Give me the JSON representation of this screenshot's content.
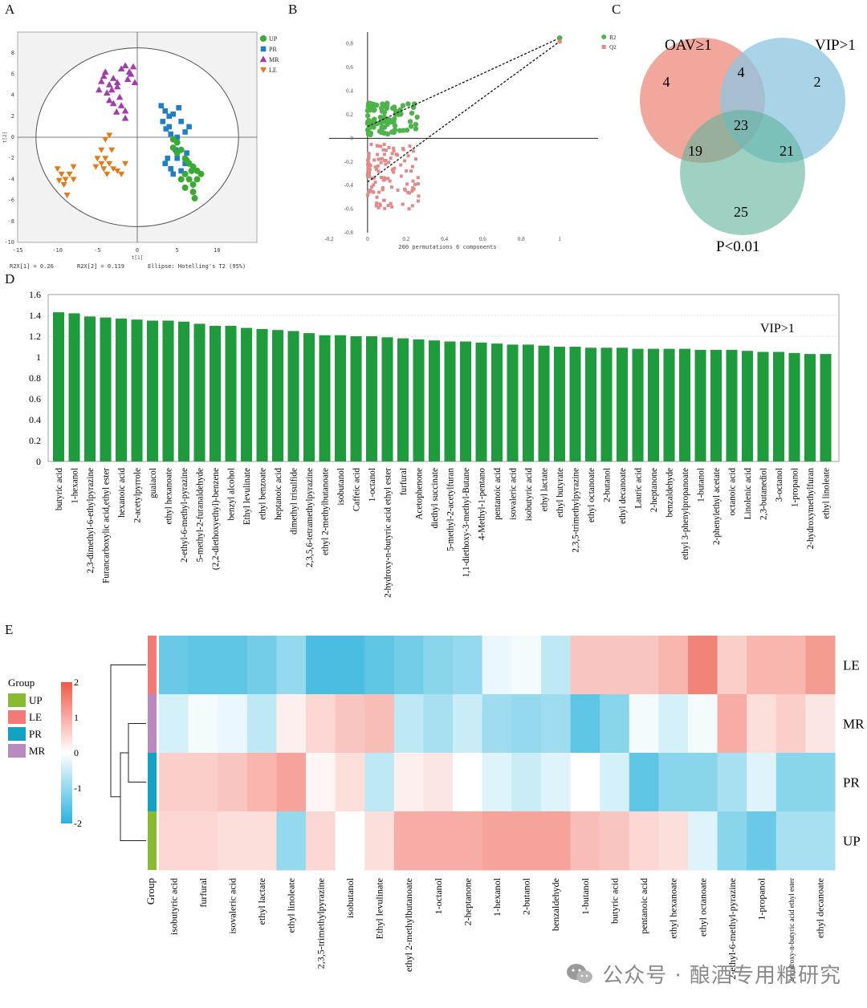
{
  "panels": {
    "a": "A",
    "b": "B",
    "c": "C",
    "d": "D",
    "e": "E"
  },
  "colors": {
    "up": "#3aaa35",
    "pr": "#1f7fc4",
    "mr": "#a03da8",
    "le": "#e07a1a",
    "bar": "#1f9a3c",
    "venn_oav": "#ee8a7c",
    "venn_vip": "#8cc5e0",
    "venn_p": "#5fb39b",
    "heat_high": "#ee5a4a",
    "heat_low": "#29b2dc",
    "g_up": "#8aba32",
    "g_le": "#f27a74",
    "g_pr": "#14a2c3",
    "g_mr": "#b88ac0"
  },
  "chart_data": [
    {
      "type": "scatter",
      "name_id": "A",
      "xlabel": "t[1]",
      "ylabel": "t[2]",
      "xlim": [
        -15,
        15
      ],
      "ylim": [
        -10,
        10
      ],
      "xticks": [
        "-15",
        "-10",
        "-5",
        "0",
        "5",
        "10"
      ],
      "yticks": [
        "8",
        "6",
        "4",
        "2",
        "0",
        "-2",
        "-4",
        "-6",
        "-8",
        "-10"
      ],
      "footer": [
        "R2X[1] = 0.26",
        "R2X[2] = 0.119",
        "Ellipse: Hotelling's T2 (95%)"
      ],
      "legend": [
        "UP",
        "PR",
        "MR",
        "LE"
      ],
      "series": [
        {
          "name": "MR",
          "points": [
            [
              -4.5,
              5.3
            ],
            [
              -4,
              6.2
            ],
            [
              -3.5,
              5.0
            ],
            [
              -3,
              5.6
            ],
            [
              -2,
              6.5
            ],
            [
              -1.5,
              6.8
            ],
            [
              -1,
              6.2
            ],
            [
              -0.5,
              6.7
            ],
            [
              -2.5,
              5.2
            ],
            [
              -3.8,
              4.2
            ],
            [
              -3.5,
              3.5
            ],
            [
              -3,
              3.2
            ],
            [
              -2,
              3.0
            ],
            [
              -1.5,
              2.5
            ],
            [
              -2.5,
              4.8
            ],
            [
              -4.8,
              4.5
            ],
            [
              -1.2,
              5.5
            ],
            [
              -0.3,
              5.2
            ],
            [
              -2.2,
              3.8
            ],
            [
              -3.2,
              4.5
            ],
            [
              -1.5,
              1.8
            ],
            [
              -2.6,
              2.4
            ],
            [
              -4.2,
              5.8
            ],
            [
              -0.8,
              6.0
            ]
          ]
        },
        {
          "name": "PR",
          "points": [
            [
              3,
              3
            ],
            [
              3.5,
              2.5
            ],
            [
              4,
              2
            ],
            [
              4.5,
              2.2
            ],
            [
              3.2,
              1.5
            ],
            [
              4,
              1
            ],
            [
              5,
              0
            ],
            [
              4.2,
              0.3
            ],
            [
              6,
              0.5
            ],
            [
              6.5,
              1
            ],
            [
              5.5,
              1.5
            ],
            [
              3.8,
              -2
            ],
            [
              4.2,
              -3
            ],
            [
              4.5,
              -3.5
            ],
            [
              3.5,
              -2.5
            ],
            [
              5,
              -2
            ],
            [
              6,
              -2.5
            ],
            [
              5.5,
              -3.2
            ],
            [
              4.8,
              -1.2
            ],
            [
              3.6,
              0.8
            ],
            [
              5.2,
              2.8
            ],
            [
              6.2,
              -1.5
            ]
          ]
        },
        {
          "name": "UP",
          "points": [
            [
              4.5,
              -1
            ],
            [
              5,
              -1.5
            ],
            [
              5.5,
              -1.2
            ],
            [
              6,
              -2
            ],
            [
              6.5,
              -2.5
            ],
            [
              7,
              -2.8
            ],
            [
              7.5,
              -3.2
            ],
            [
              6,
              -3.5
            ],
            [
              6.5,
              -4
            ],
            [
              7,
              -4.5
            ],
            [
              5.5,
              -4
            ],
            [
              6,
              -4.8
            ],
            [
              7,
              -5.2
            ],
            [
              7.5,
              -4
            ],
            [
              8,
              -3.5
            ],
            [
              5,
              -0.5
            ],
            [
              4.5,
              -0.2
            ],
            [
              6.8,
              -3.2
            ],
            [
              7.2,
              -5.8
            ],
            [
              6.2,
              -2.2
            ]
          ]
        },
        {
          "name": "LE",
          "points": [
            [
              -10,
              -3
            ],
            [
              -9.5,
              -3.5
            ],
            [
              -9,
              -4
            ],
            [
              -8.5,
              -3.5
            ],
            [
              -8,
              -4
            ],
            [
              -9.2,
              -4.5
            ],
            [
              -8.8,
              -5.5
            ],
            [
              -8,
              -2.8
            ],
            [
              -9.8,
              -4.1
            ],
            [
              -5,
              -2
            ],
            [
              -4.5,
              -2.5
            ],
            [
              -4,
              -2
            ],
            [
              -3.5,
              -2.5
            ],
            [
              -3,
              -3
            ],
            [
              -4.2,
              -3
            ],
            [
              -5.2,
              -2.8
            ],
            [
              -2.5,
              -3.2
            ],
            [
              -3.8,
              -3.5
            ],
            [
              -4.5,
              -1.2
            ],
            [
              -3.2,
              -1.2
            ],
            [
              -4,
              -0.2
            ],
            [
              -3.5,
              0.2
            ],
            [
              -1.5,
              -2.5
            ],
            [
              -2,
              -3.5
            ]
          ]
        }
      ]
    },
    {
      "type": "scatter",
      "name_id": "B",
      "xlabel": "200 permutations 6 components",
      "xlim": [
        -0.2,
        1.2
      ],
      "ylim": [
        -0.8,
        0.9
      ],
      "xticks": [
        "-0.2",
        "0",
        "0.2",
        "0.4",
        "0.6",
        "0.8",
        "1"
      ],
      "yticks": [
        "0.8",
        "0.6",
        "0.4",
        "0.2",
        "0",
        "-0.2",
        "-0.4",
        "-0.6",
        "-0.8"
      ],
      "legend": [
        "R2",
        "Q2"
      ],
      "series": [
        {
          "name": "R2",
          "points": [
            [
              1,
              0.85
            ]
          ],
          "regression": [
            [
              0,
              0.1
            ],
            [
              1,
              0.85
            ]
          ]
        },
        {
          "name": "Q2",
          "points": [
            [
              1,
              0.82
            ]
          ],
          "regression": [
            [
              0,
              -0.37
            ],
            [
              1,
              0.82
            ]
          ]
        }
      ]
    },
    {
      "type": "venn",
      "name_id": "C",
      "sets": [
        "OAV≥1",
        "VIP>1",
        "P<0.01"
      ],
      "regions": {
        "oav_only": "4",
        "vip_only": "2",
        "p_only": "25",
        "oav_vip": "4",
        "oav_p": "19",
        "vip_p": "21",
        "all": "23"
      }
    },
    {
      "type": "bar",
      "name_id": "D",
      "annotation": "VIP>1",
      "ylim": [
        0,
        1.6
      ],
      "yticks": [
        "0",
        "0.2",
        "0.4",
        "0.6",
        "0.8",
        "1",
        "1.2",
        "1.4",
        "1.6"
      ],
      "categories": [
        "butyric acid",
        "1-hexanol",
        "2,3-dimethyl-6-ethylpyrazine",
        "Furancarboxylic acid,ethyl ester",
        "hexanoic acid",
        "2-acetylpyrrole",
        "guaiacol",
        "ethyl hexanoate",
        "2-ethyl-6-methyl-pyrazine",
        "5-methyl-2-furanaldehyde",
        "(2,2-diethoxyethyl)-benzene",
        "benzyl alcohol",
        "Ethyl levulinate",
        "ethyl benzoate",
        "heptanoic acid",
        "dimethyl trisulfide",
        "2,3,5,6-tetramethylpyrazine",
        "ethyl 2-methylbutanoate",
        "isobutanol",
        "Caffeic acid",
        "1-octanol",
        "2-hydroxy-n-butyric acid ethyl ester",
        "furfural",
        "Acetophenone",
        "diethyl succinate",
        "5-methyl-2-acetylfuran",
        "1,1-diethoxy-3-methyl-Butane",
        "4-Methyl-1-pentano",
        "pentanoic acid",
        "isovaleric acid",
        "isobutyric acid",
        "ethyl lactate",
        "ethyl butyrate",
        "2,3,5-trimethylpyrazine",
        "ethyl octanoate",
        "2-butanol",
        "ethyl decanoate",
        "Lauric acid",
        "2-heptanone",
        "benzaldehyde",
        "ethyl 3-phenylpropanoate",
        "1-butanol",
        "2-phenylethyl acetate",
        "octanoic acid",
        "Linolenic acid",
        "2,3-butanediol",
        "3-octanol",
        "1-propanol",
        "2-hydroxymethylfuran",
        "ethyl linoleate"
      ],
      "values": [
        1.43,
        1.42,
        1.39,
        1.38,
        1.37,
        1.36,
        1.35,
        1.35,
        1.34,
        1.32,
        1.3,
        1.3,
        1.28,
        1.27,
        1.26,
        1.25,
        1.23,
        1.21,
        1.21,
        1.2,
        1.2,
        1.19,
        1.18,
        1.17,
        1.16,
        1.15,
        1.15,
        1.14,
        1.13,
        1.12,
        1.12,
        1.11,
        1.1,
        1.1,
        1.09,
        1.09,
        1.09,
        1.08,
        1.08,
        1.08,
        1.08,
        1.07,
        1.07,
        1.07,
        1.06,
        1.05,
        1.05,
        1.04,
        1.03,
        1.03
      ]
    },
    {
      "type": "heatmap",
      "name_id": "E",
      "rows": [
        "LE",
        "MR",
        "PR",
        "UP"
      ],
      "groups": [
        "LE",
        "MR",
        "PR",
        "UP"
      ],
      "group_axis_label": "Group",
      "legend_title": "Group",
      "legend_groups": [
        "UP",
        "LE",
        "PR",
        "MR"
      ],
      "scale_ticks": [
        "2",
        "1",
        "0",
        "-1",
        "-2"
      ],
      "scale_range": [
        -2,
        2
      ],
      "columns": [
        "isobutyric acid",
        "furfural",
        "isovaleric acid",
        "ethyl lactate",
        "ethyl linoleate",
        "2,3,5-trimethylpyrazine",
        "isobutanol",
        "Ethyl levulinate",
        "ethyl 2-methylbutanoate",
        "1-octanol",
        "2-heptanone",
        "1-hexanol",
        "2-butanol",
        "benzaldehyde",
        "1-butanol",
        "butyric acid",
        "pentanoic acid",
        "ethyl hexanoate",
        "ethyl octanoate",
        "2-ethyl-6-methyl-pyrazine",
        "1-propanol",
        "2-hydroxy-n-butyric acid ethyl ester",
        "ethyl decanoate"
      ],
      "values": [
        [
          -1.4,
          -1.5,
          -1.5,
          -1.3,
          -1.0,
          -1.7,
          -1.7,
          -1.5,
          -1.3,
          -1.1,
          -1.0,
          -0.2,
          -0.1,
          -0.6,
          0.7,
          0.7,
          0.7,
          0.9,
          1.5,
          0.6,
          0.9,
          0.9,
          1.2
        ],
        [
          -0.4,
          -0.1,
          -0.2,
          -0.6,
          0.2,
          0.5,
          0.7,
          0.8,
          -0.6,
          -0.8,
          -0.5,
          -0.9,
          -1.0,
          -0.9,
          -1.5,
          -1.1,
          -0.1,
          -0.4,
          -0.1,
          1.0,
          0.4,
          0.6,
          0.3
        ],
        [
          0.6,
          0.6,
          0.7,
          0.9,
          1.1,
          0.1,
          0.4,
          -0.6,
          0.2,
          0.3,
          0.0,
          -0.3,
          -0.5,
          -0.3,
          0.0,
          -0.4,
          -1.5,
          -1.1,
          -1.1,
          -0.8,
          -0.3,
          -1.1,
          -1.1
        ],
        [
          0.5,
          0.5,
          0.4,
          0.4,
          -1.0,
          0.5,
          0.0,
          0.4,
          1.0,
          1.0,
          1.0,
          1.1,
          1.1,
          1.1,
          0.8,
          0.7,
          0.5,
          0.4,
          -0.3,
          -1.1,
          -1.4,
          -0.8,
          -0.8
        ]
      ]
    }
  ],
  "watermark": {
    "text": "公众号 · 酿酒专用粮研究"
  }
}
